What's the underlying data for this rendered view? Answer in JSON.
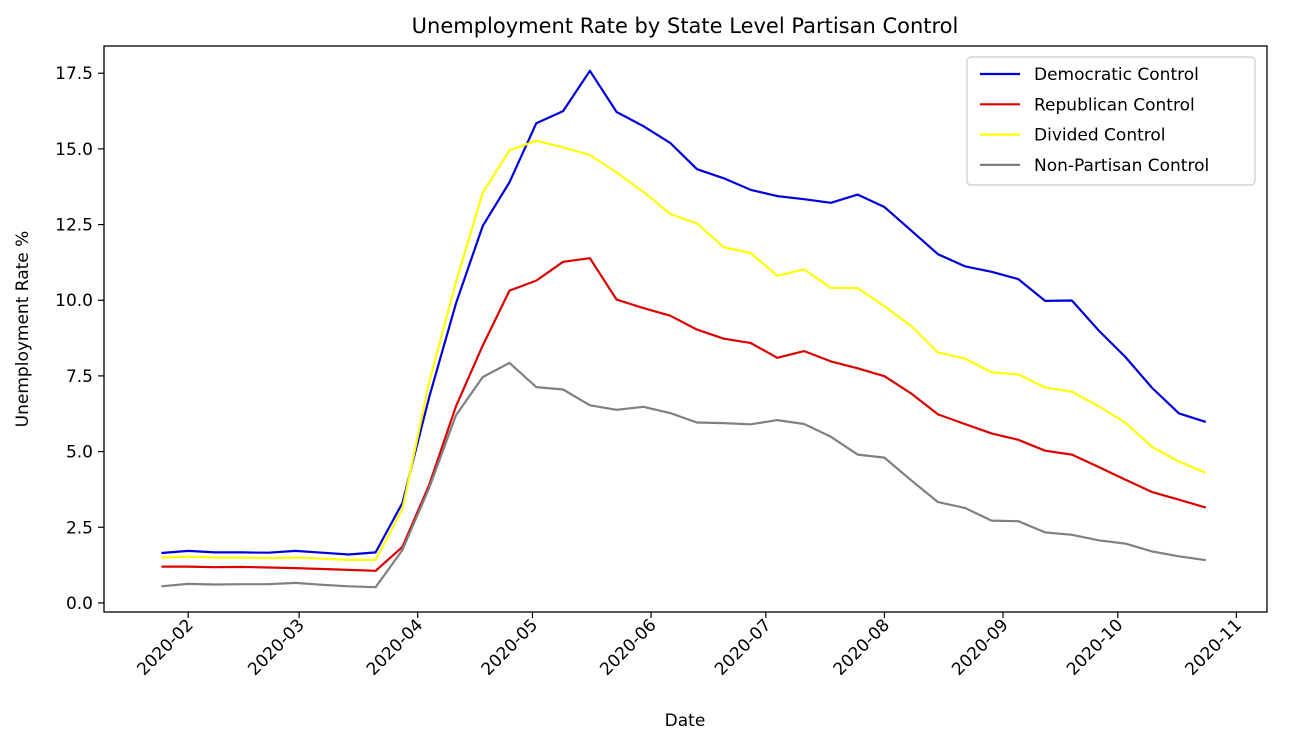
{
  "chart_data": {
    "type": "line",
    "title": "Unemployment Rate by State Level Partisan Control",
    "xlabel": "Date",
    "ylabel": "Unemployment Rate %",
    "xlim": [
      "2020-01-10",
      "2020-11-09"
    ],
    "ylim": [
      -0.3,
      18.4
    ],
    "x_ticks": [
      "2020-02-01",
      "2020-03-01",
      "2020-04-01",
      "2020-05-01",
      "2020-06-01",
      "2020-07-01",
      "2020-08-01",
      "2020-09-01",
      "2020-10-01",
      "2020-11-01"
    ],
    "x_tick_labels": [
      "2020-02",
      "2020-03",
      "2020-04",
      "2020-05",
      "2020-06",
      "2020-07",
      "2020-08",
      "2020-09",
      "2020-10",
      "2020-11"
    ],
    "y_ticks": [
      0.0,
      2.5,
      5.0,
      7.5,
      10.0,
      12.5,
      15.0,
      17.5
    ],
    "y_tick_labels": [
      "0.0",
      "2.5",
      "5.0",
      "7.5",
      "10.0",
      "12.5",
      "15.0",
      "17.5"
    ],
    "legend_position": "top-right",
    "grid": false,
    "x": [
      "2020-01-25",
      "2020-02-01",
      "2020-02-08",
      "2020-02-15",
      "2020-02-22",
      "2020-02-29",
      "2020-03-07",
      "2020-03-14",
      "2020-03-21",
      "2020-03-28",
      "2020-04-04",
      "2020-04-11",
      "2020-04-18",
      "2020-04-25",
      "2020-05-02",
      "2020-05-09",
      "2020-05-16",
      "2020-05-23",
      "2020-05-30",
      "2020-06-06",
      "2020-06-13",
      "2020-06-20",
      "2020-06-27",
      "2020-07-04",
      "2020-07-11",
      "2020-07-18",
      "2020-07-25",
      "2020-08-01",
      "2020-08-08",
      "2020-08-15",
      "2020-08-22",
      "2020-08-29",
      "2020-09-05",
      "2020-09-12",
      "2020-09-19",
      "2020-09-26",
      "2020-10-03",
      "2020-10-10",
      "2020-10-17",
      "2020-10-24"
    ],
    "series": [
      {
        "name": "Democratic Control",
        "color": "#0000dd",
        "values": [
          1.65,
          1.72,
          1.67,
          1.67,
          1.66,
          1.72,
          1.66,
          1.6,
          1.67,
          3.3,
          6.8,
          9.9,
          12.45,
          13.9,
          15.85,
          16.25,
          17.58,
          16.22,
          15.75,
          15.2,
          14.33,
          14.03,
          13.65,
          13.44,
          13.34,
          13.22,
          13.49,
          13.08,
          12.3,
          11.52,
          11.12,
          10.94,
          10.7,
          9.98,
          9.99,
          9.0,
          8.12,
          7.1,
          6.26,
          5.98
        ]
      },
      {
        "name": "Republican Control",
        "color": "#dd0000",
        "values": [
          1.2,
          1.2,
          1.18,
          1.19,
          1.17,
          1.15,
          1.12,
          1.09,
          1.06,
          1.85,
          3.9,
          6.5,
          8.5,
          10.32,
          10.65,
          11.27,
          11.39,
          10.02,
          9.74,
          9.49,
          9.03,
          8.73,
          8.59,
          8.1,
          8.32,
          7.98,
          7.75,
          7.49,
          6.92,
          6.23,
          5.91,
          5.6,
          5.39,
          5.03,
          4.9,
          4.49,
          4.07,
          3.66,
          3.41,
          3.15
        ]
      },
      {
        "name": "Divided Control",
        "color": "#ffff00",
        "values": [
          1.5,
          1.53,
          1.5,
          1.5,
          1.48,
          1.5,
          1.46,
          1.42,
          1.42,
          3.1,
          7.3,
          10.6,
          13.55,
          14.95,
          15.27,
          15.05,
          14.8,
          14.22,
          13.58,
          12.85,
          12.54,
          11.75,
          11.56,
          10.81,
          11.02,
          10.41,
          10.4,
          9.8,
          9.15,
          8.27,
          8.08,
          7.62,
          7.55,
          7.12,
          6.98,
          6.5,
          5.95,
          5.15,
          4.67,
          4.3
        ]
      },
      {
        "name": "Non-Partisan Control",
        "color": "#808080",
        "values": [
          0.55,
          0.63,
          0.61,
          0.62,
          0.62,
          0.66,
          0.6,
          0.55,
          0.52,
          1.75,
          3.8,
          6.2,
          7.46,
          7.93,
          7.13,
          7.05,
          6.53,
          6.38,
          6.48,
          6.27,
          5.96,
          5.94,
          5.9,
          6.04,
          5.91,
          5.49,
          4.9,
          4.8,
          4.05,
          3.33,
          3.14,
          2.72,
          2.7,
          2.33,
          2.25,
          2.07,
          1.96,
          1.7,
          1.54,
          1.41
        ]
      }
    ]
  }
}
